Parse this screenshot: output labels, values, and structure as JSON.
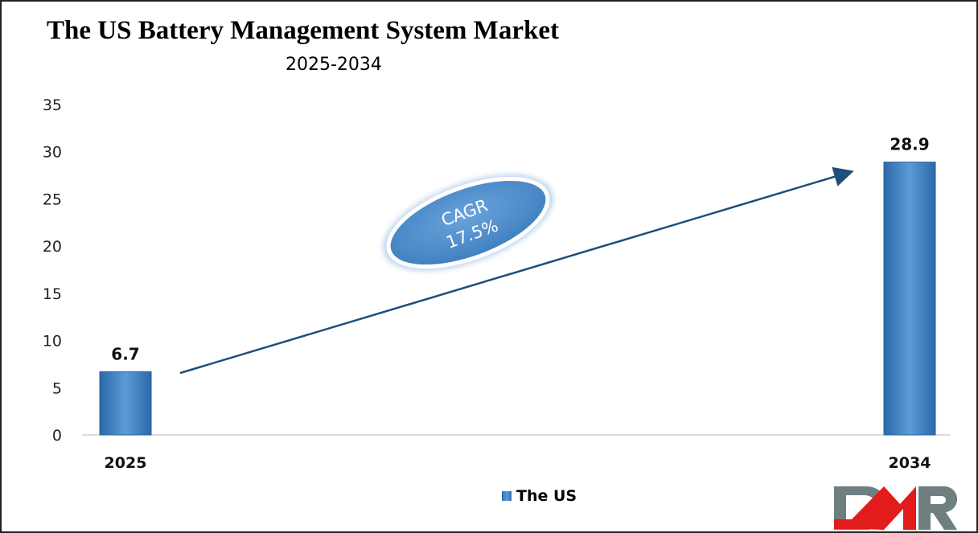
{
  "chart_data": {
    "type": "bar",
    "title": "The US Battery Management System Market",
    "subtitle": "2025-2034",
    "categories": [
      "2025",
      "2034"
    ],
    "series": [
      {
        "name": "The US",
        "values": [
          6.7,
          28.9
        ],
        "color": "#3b7dc4"
      }
    ],
    "data_labels": [
      "6.7",
      "28.9"
    ],
    "ylim": [
      0,
      35
    ],
    "yticks": [
      "0",
      "5",
      "10",
      "15",
      "20",
      "25",
      "30",
      "35"
    ],
    "xlabel": "",
    "ylabel": "",
    "grid": false,
    "legend": "bottom-center",
    "annotation": {
      "line1": "CAGR",
      "line2": "17.5%"
    },
    "logo": "DMR"
  }
}
